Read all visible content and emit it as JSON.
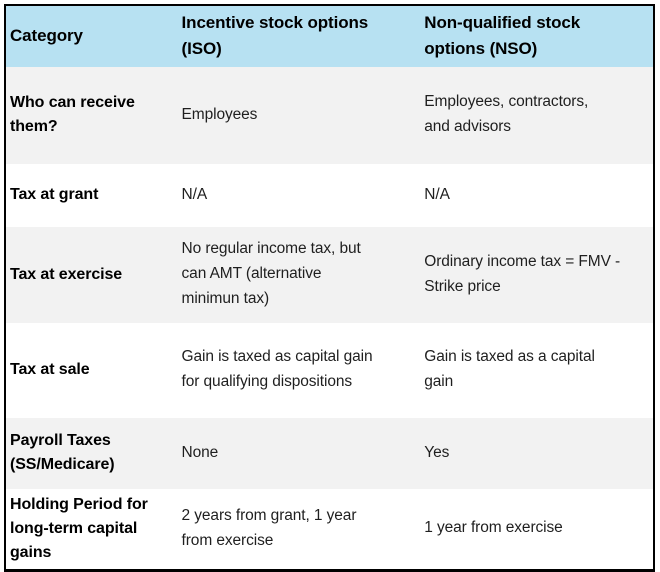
{
  "colors": {
    "header_bg": "#b7e1f2",
    "zebra_row_bg": "#f2f2f2",
    "plain_row_bg": "#ffffff",
    "outer_border": "#000000",
    "body_text": "#1f1f1f",
    "bold_text": "#000000"
  },
  "table": {
    "headers": {
      "category": "Category",
      "iso": "Incentive stock options\n(ISO)",
      "nso": "Non-qualified stock\noptions (NSO)"
    },
    "rows": [
      {
        "category": "Who can receive\nthem?",
        "iso": "Employees",
        "nso": "Employees, contractors,\nand advisors"
      },
      {
        "category": "Tax at grant",
        "iso": "N/A",
        "nso": "N/A"
      },
      {
        "category": "Tax at exercise",
        "iso": "No regular income tax, but\ncan AMT (alternative\nminimun tax)",
        "nso": "Ordinary income tax = FMV -\nStrike price"
      },
      {
        "category": "Tax at sale",
        "iso": "Gain is taxed as capital gain\nfor qualifying dispositions",
        "nso": "Gain is taxed as a capital\ngain"
      },
      {
        "category": "Payroll Taxes\n(SS/Medicare)",
        "iso": "None",
        "nso": "Yes"
      },
      {
        "category": "Holding Period for\nlong-term capital\ngains",
        "iso": "2 years from grant, 1 year\nfrom exercise",
        "nso": "1 year from exercise"
      }
    ]
  }
}
